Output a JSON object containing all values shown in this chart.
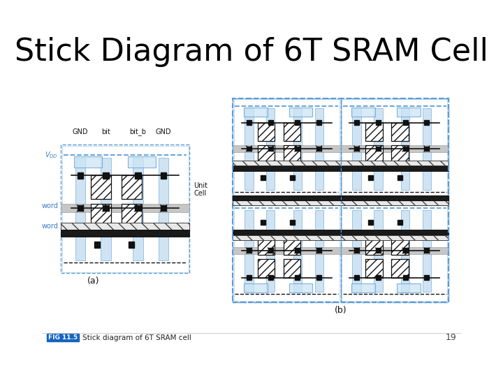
{
  "title": "Stick Diagram of 6T SRAM Cell",
  "title_fontsize": 32,
  "background_color": "#ffffff",
  "fig_label": "FIG 11.5",
  "fig_label_text": "Stick diagram of 6T SRAM cell",
  "page_number": "19",
  "caption_a": "(a)",
  "caption_b": "(b)",
  "blue": "#5b9bd5",
  "lt_blue": "#a8cce8",
  "dk_blue": "#2970a8",
  "gray_wl": "#c0c0c0",
  "black": "#111111",
  "blue_txt": "#3a7fc1",
  "fig_label_bg": "#1565c0",
  "labels_top": [
    "GND",
    "bit",
    "bit_b",
    "GND"
  ],
  "label_vdd": "$V_{DD}$",
  "label_word1": "word",
  "label_word2": "word",
  "unit_cell_label": "Unit\nCell"
}
